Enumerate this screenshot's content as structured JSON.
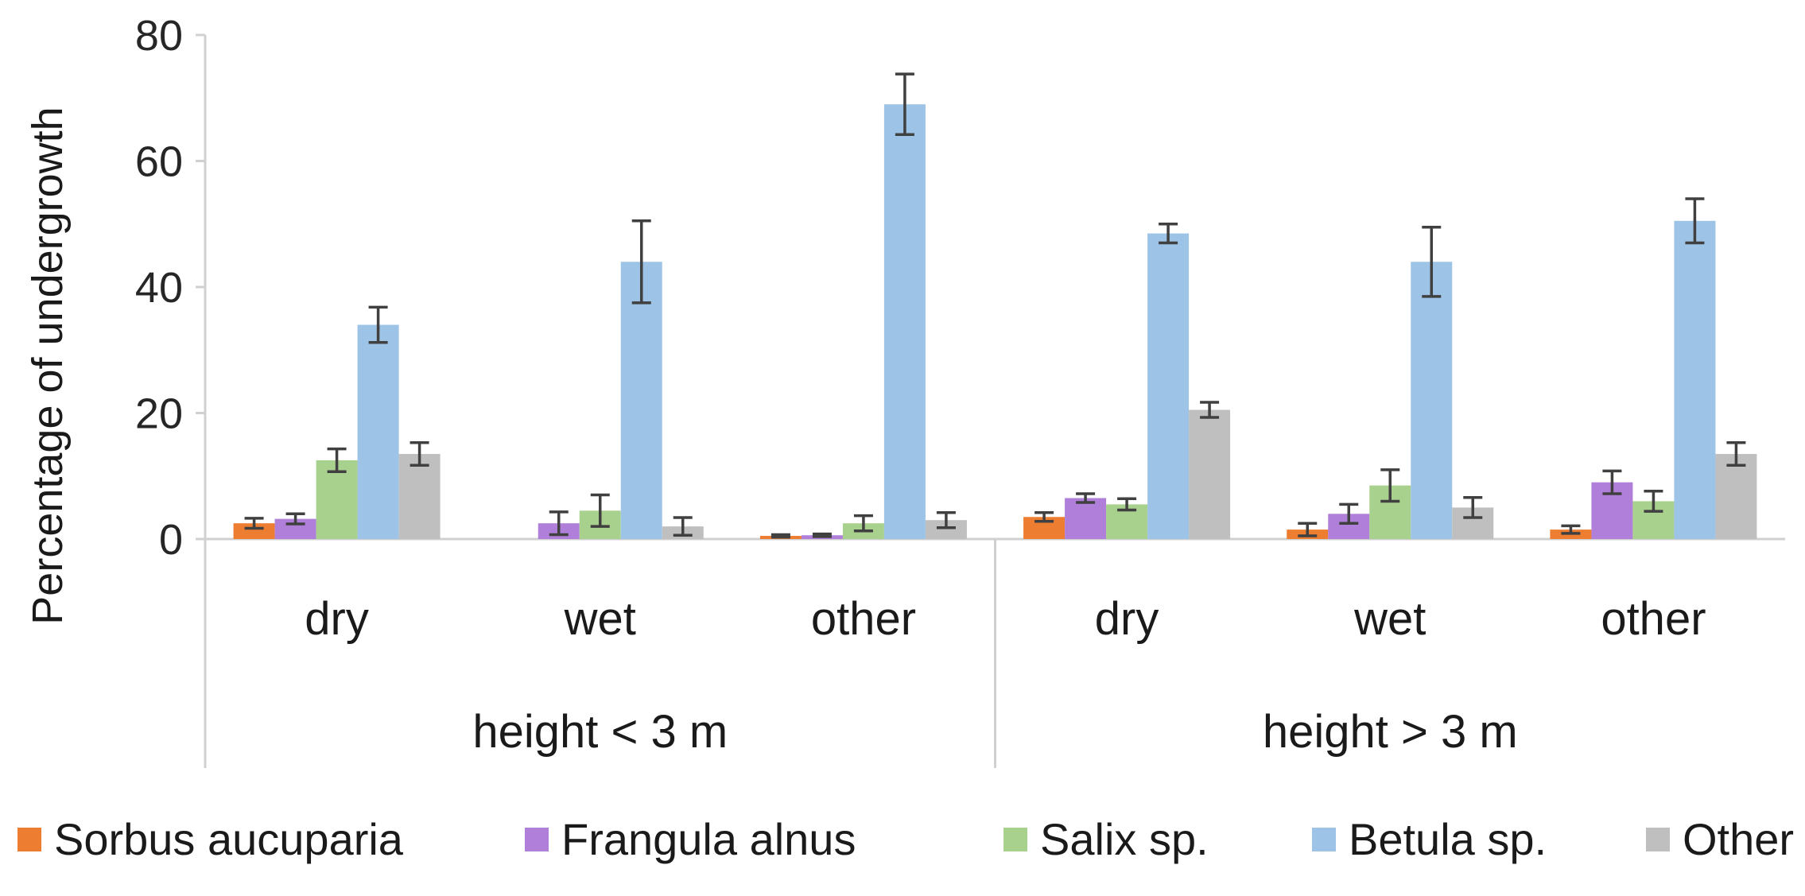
{
  "chart_data": {
    "type": "bar",
    "ylabel": "Percentage  of undergrowth",
    "xlabel": "",
    "ylim": [
      0,
      80
    ],
    "yticks": [
      0,
      20,
      40,
      60,
      80
    ],
    "grid": false,
    "legend_position": "bottom",
    "groups": [
      {
        "label": "height < 3 m",
        "categories": [
          "dry",
          "wet",
          "other"
        ]
      },
      {
        "label": "height > 3 m",
        "categories": [
          "dry",
          "wet",
          "other"
        ]
      }
    ],
    "series": [
      {
        "name": "Sorbus aucuparia",
        "color": "#ed7d31",
        "values": [
          2.5,
          0,
          0.5,
          3.5,
          1.5,
          1.5
        ],
        "errors": [
          0.8,
          0,
          0.2,
          0.7,
          1.0,
          0.6
        ]
      },
      {
        "name": "Frangula alnus",
        "color": "#b07fd9",
        "values": [
          3.2,
          2.5,
          0.6,
          6.5,
          4.0,
          9.0
        ],
        "errors": [
          0.8,
          1.8,
          0.2,
          0.7,
          1.5,
          1.8
        ]
      },
      {
        "name": "Salix sp.",
        "color": "#a9d18e",
        "values": [
          12.5,
          4.5,
          2.5,
          5.5,
          8.5,
          6.0
        ],
        "errors": [
          1.8,
          2.5,
          1.2,
          0.9,
          2.5,
          1.6
        ]
      },
      {
        "name": "Betula sp.",
        "color": "#9dc3e6",
        "values": [
          34.0,
          44.0,
          69.0,
          48.5,
          44.0,
          50.5
        ],
        "errors": [
          2.8,
          6.5,
          4.8,
          1.5,
          5.5,
          3.5
        ]
      },
      {
        "name": "Other",
        "color": "#bfbfbf",
        "values": [
          13.5,
          2.0,
          3.0,
          20.5,
          5.0,
          13.5
        ],
        "errors": [
          1.8,
          1.4,
          1.2,
          1.2,
          1.6,
          1.8
        ]
      }
    ]
  }
}
